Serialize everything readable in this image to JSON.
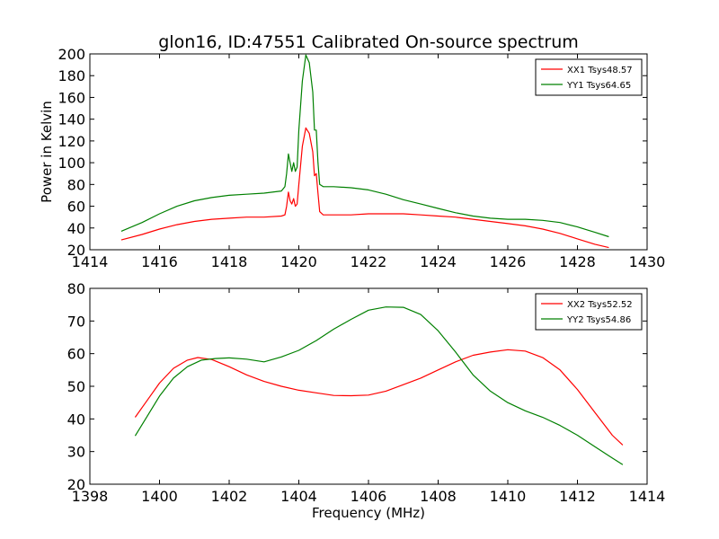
{
  "title": "glon16, ID:47551 Calibrated On-source spectrum",
  "colors": {
    "red": "#ff0000",
    "green": "#008000"
  },
  "chart_data": [
    {
      "type": "line",
      "title": "glon16, ID:47551 Calibrated On-source spectrum",
      "xlabel": "",
      "ylabel": "Power in Kelvin",
      "xlim": [
        1414,
        1430
      ],
      "ylim": [
        20,
        200
      ],
      "xticks": [
        "1414",
        "1416",
        "1418",
        "1420",
        "1422",
        "1424",
        "1426",
        "1428",
        "1430"
      ],
      "yticks": [
        "20",
        "40",
        "60",
        "80",
        "100",
        "120",
        "140",
        "160",
        "180",
        "200"
      ],
      "legend_position": "top-right",
      "series": [
        {
          "name": "XX1 Tsys48.57",
          "color": "#ff0000",
          "x": [
            1414.9,
            1415.5,
            1416.0,
            1416.5,
            1417.0,
            1417.5,
            1418.0,
            1418.5,
            1419.0,
            1419.5,
            1419.6,
            1419.65,
            1419.7,
            1419.75,
            1419.8,
            1419.85,
            1419.9,
            1419.95,
            1420.0,
            1420.1,
            1420.2,
            1420.3,
            1420.4,
            1420.45,
            1420.5,
            1420.55,
            1420.6,
            1420.7,
            1421.0,
            1421.5,
            1422.0,
            1422.5,
            1423.0,
            1423.5,
            1424.0,
            1424.5,
            1425.0,
            1425.5,
            1426.0,
            1426.5,
            1427.0,
            1427.5,
            1428.0,
            1428.5,
            1428.9
          ],
          "y": [
            29,
            34,
            39,
            43,
            46,
            48,
            49,
            50,
            50,
            51,
            52,
            60,
            73,
            65,
            62,
            67,
            60,
            62,
            80,
            115,
            132,
            127,
            110,
            88,
            90,
            72,
            55,
            52,
            52,
            52,
            53,
            53,
            53,
            52,
            51,
            50,
            48,
            46,
            44,
            42,
            39,
            35,
            30,
            25,
            22
          ]
        },
        {
          "name": "YY1 Tsys64.65",
          "color": "#008000",
          "x": [
            1414.9,
            1415.5,
            1416.0,
            1416.5,
            1417.0,
            1417.5,
            1418.0,
            1418.5,
            1419.0,
            1419.5,
            1419.6,
            1419.65,
            1419.7,
            1419.75,
            1419.8,
            1419.85,
            1419.9,
            1419.95,
            1420.0,
            1420.1,
            1420.2,
            1420.3,
            1420.4,
            1420.45,
            1420.5,
            1420.55,
            1420.6,
            1420.7,
            1421.0,
            1421.5,
            1422.0,
            1422.5,
            1423.0,
            1423.5,
            1424.0,
            1424.5,
            1425.0,
            1425.5,
            1426.0,
            1426.5,
            1427.0,
            1427.5,
            1428.0,
            1428.5,
            1428.9
          ],
          "y": [
            37,
            45,
            53,
            60,
            65,
            68,
            70,
            71,
            72,
            74,
            78,
            90,
            108,
            100,
            92,
            100,
            92,
            96,
            130,
            175,
            199,
            192,
            165,
            130,
            130,
            100,
            80,
            78,
            78,
            77,
            75,
            71,
            66,
            62,
            58,
            54,
            51,
            49,
            48,
            48,
            47,
            45,
            41,
            36,
            32
          ]
        }
      ]
    },
    {
      "type": "line",
      "title": "",
      "xlabel": "Frequency (MHz)",
      "ylabel": "",
      "xlim": [
        1398,
        1414
      ],
      "ylim": [
        20,
        80
      ],
      "xticks": [
        "1398",
        "1400",
        "1402",
        "1404",
        "1406",
        "1408",
        "1410",
        "1412",
        "1414"
      ],
      "yticks": [
        "20",
        "30",
        "40",
        "50",
        "60",
        "70",
        "80"
      ],
      "legend_position": "top-right",
      "series": [
        {
          "name": "XX2 Tsys52.52",
          "color": "#ff0000",
          "x": [
            1399.3,
            1399.6,
            1400.0,
            1400.4,
            1400.8,
            1401.1,
            1401.5,
            1402.0,
            1402.5,
            1403.0,
            1403.5,
            1404.0,
            1404.5,
            1405.0,
            1405.5,
            1406.0,
            1406.5,
            1407.0,
            1407.5,
            1408.0,
            1408.5,
            1409.0,
            1409.5,
            1410.0,
            1410.5,
            1411.0,
            1411.5,
            1412.0,
            1412.5,
            1413.0,
            1413.3
          ],
          "y": [
            40.5,
            45,
            51,
            55.5,
            58,
            58.8,
            58.2,
            56,
            53.5,
            51.5,
            50,
            48.8,
            48,
            47.2,
            47.1,
            47.3,
            48.5,
            50.5,
            52.5,
            55,
            57.5,
            59.5,
            60.5,
            61.2,
            60.8,
            58.8,
            55,
            49,
            42,
            35,
            32
          ]
        },
        {
          "name": "YY2 Tsys54.86",
          "color": "#008000",
          "x": [
            1399.3,
            1399.6,
            1400.0,
            1400.4,
            1400.8,
            1401.2,
            1401.6,
            1402.0,
            1402.5,
            1403.0,
            1403.5,
            1404.0,
            1404.5,
            1405.0,
            1405.5,
            1406.0,
            1406.5,
            1407.0,
            1407.5,
            1408.0,
            1408.5,
            1409.0,
            1409.5,
            1410.0,
            1410.5,
            1411.0,
            1411.5,
            1412.0,
            1412.5,
            1413.0,
            1413.3
          ],
          "y": [
            34.8,
            40,
            47,
            52.5,
            56,
            58,
            58.5,
            58.7,
            58.3,
            57.5,
            59,
            61,
            64,
            67.5,
            70.5,
            73.3,
            74.3,
            74.2,
            72,
            67,
            60.5,
            53.5,
            48.5,
            45,
            42.5,
            40.5,
            38,
            35,
            31.5,
            28,
            26
          ]
        }
      ]
    }
  ]
}
